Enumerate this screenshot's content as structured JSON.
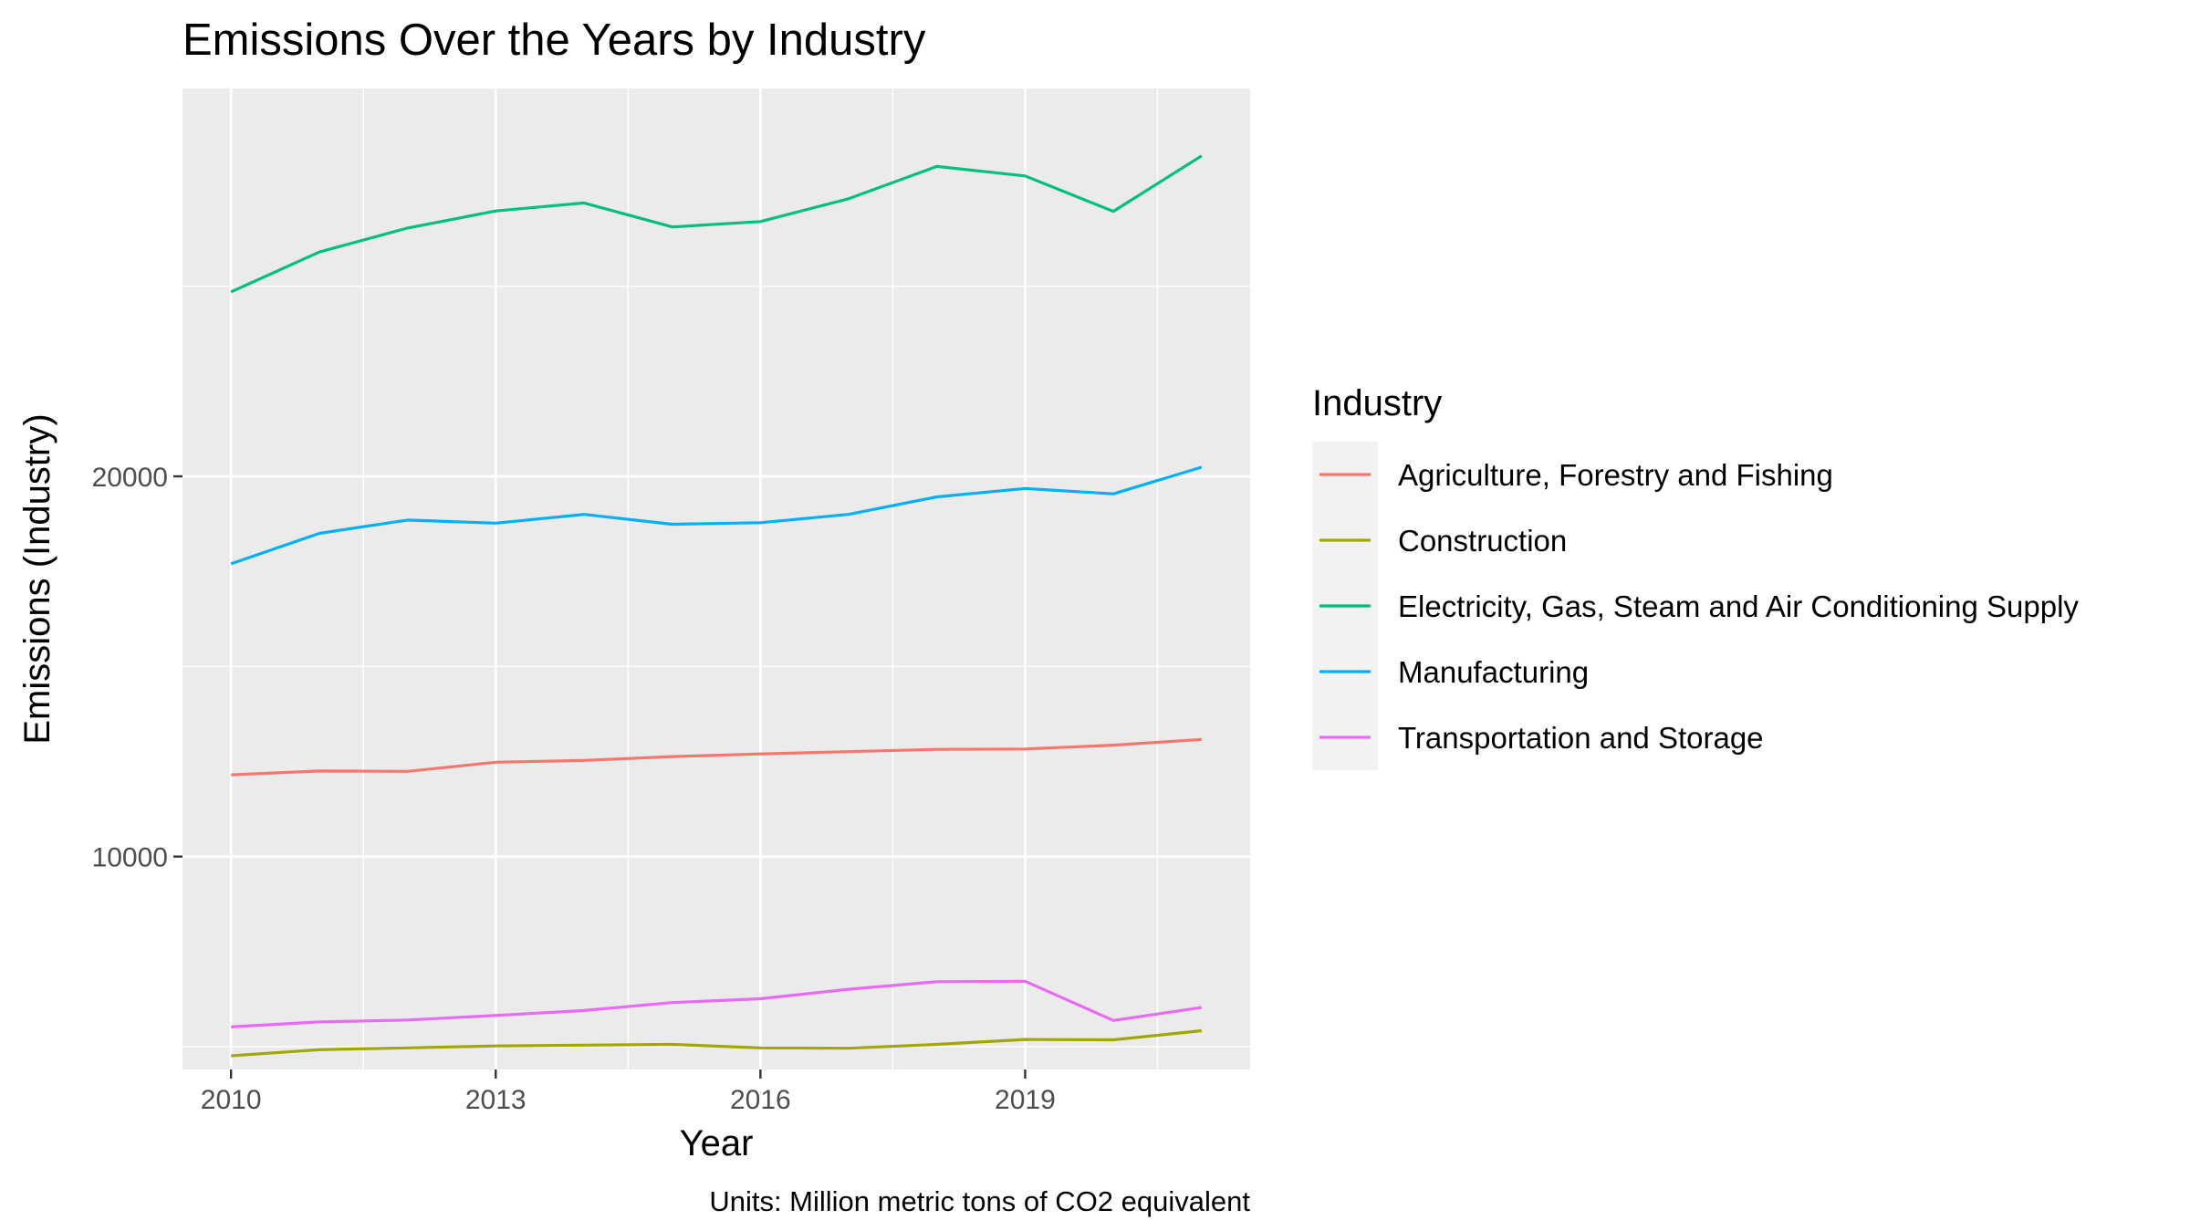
{
  "chart_data": {
    "type": "line",
    "title": "Emissions Over the Years by Industry",
    "xlabel": "Year",
    "ylabel": "Emissions (Industry)",
    "caption": "Units: Million metric tons of CO2 equivalent",
    "x": [
      2010,
      2011,
      2012,
      2013,
      2014,
      2015,
      2016,
      2017,
      2018,
      2019,
      2020,
      2021
    ],
    "xlim": [
      2009.45,
      2021.55
    ],
    "ylim": [
      4400,
      30200
    ],
    "x_ticks": [
      2010,
      2013,
      2016,
      2019
    ],
    "x_tick_labels": [
      "2010",
      "2013",
      "2016",
      "2019"
    ],
    "x_minor_ticks": [
      2011.5,
      2014.5,
      2017.5,
      2020.5
    ],
    "y_ticks": [
      10000,
      20000
    ],
    "y_tick_labels": [
      "10000",
      "20000"
    ],
    "y_minor_ticks": [
      5000,
      15000,
      25000
    ],
    "grid": true,
    "legend": {
      "title": "Industry",
      "position": "right"
    },
    "series": [
      {
        "name": "Agriculture, Forestry and Fishing",
        "color": "#F8766D",
        "values": [
          12150,
          12250,
          12240,
          12480,
          12530,
          12630,
          12700,
          12760,
          12820,
          12830,
          12930,
          13080
        ]
      },
      {
        "name": "Construction",
        "color": "#A3A500",
        "values": [
          4760,
          4920,
          4970,
          5020,
          5040,
          5060,
          4970,
          4960,
          5060,
          5190,
          5180,
          5420
        ]
      },
      {
        "name": "Electricity, Gas, Steam and Air Conditioning Supply",
        "color": "#00BF7D",
        "values": [
          24850,
          25900,
          26530,
          26980,
          27190,
          26560,
          26700,
          27300,
          28150,
          27900,
          26970,
          28430
        ]
      },
      {
        "name": "Manufacturing",
        "color": "#00B0F6",
        "values": [
          17700,
          18500,
          18850,
          18770,
          19000,
          18740,
          18780,
          19000,
          19460,
          19680,
          19540,
          20240
        ]
      },
      {
        "name": "Transportation and Storage",
        "color": "#E76BF3",
        "values": [
          5520,
          5650,
          5700,
          5820,
          5950,
          6160,
          6260,
          6510,
          6710,
          6720,
          5690,
          6030
        ]
      }
    ]
  }
}
